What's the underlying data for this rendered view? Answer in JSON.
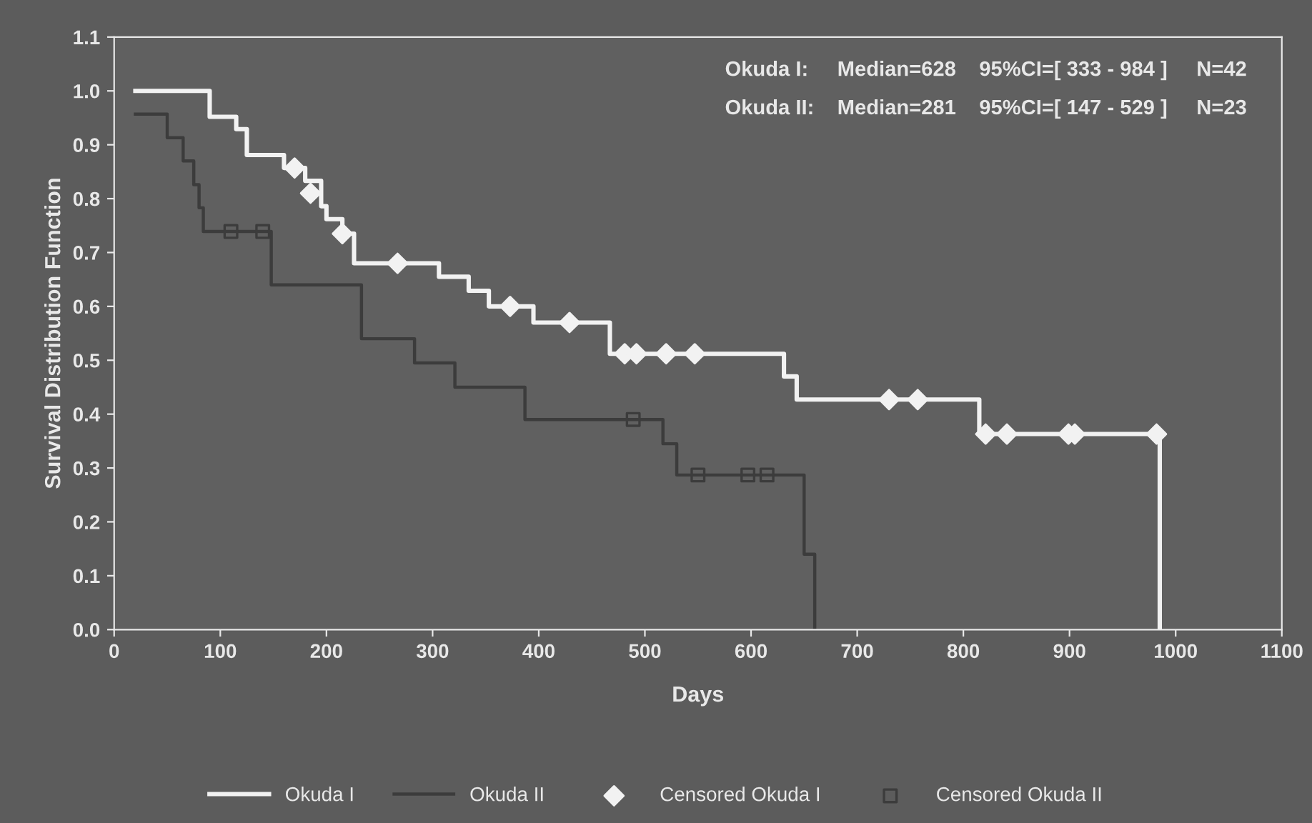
{
  "chart_data": {
    "type": "step",
    "xlabel": "Days",
    "ylabel": "Survival Distribution Function",
    "annotations": [
      "Okuda I:     Median=628    95%CI=[ 333 - 984 ]     N=42",
      "Okuda II:    Median=281    95%CI=[ 147 - 529 ]     N=23"
    ],
    "series": [
      {
        "name": "Okuda I",
        "color": "#f2f2f2",
        "line_style": "solid",
        "marker": "none",
        "x": [
          20,
          90,
          115,
          125,
          160,
          180,
          195,
          200,
          215,
          226,
          306,
          334,
          353,
          395,
          467,
          631,
          643,
          815,
          985
        ],
        "values": [
          1.0,
          0.952,
          0.929,
          0.881,
          0.857,
          0.833,
          0.786,
          0.762,
          0.735,
          0.68,
          0.655,
          0.629,
          0.6,
          0.57,
          0.512,
          0.47,
          0.427,
          0.363,
          0.0
        ]
      },
      {
        "name": "Okuda II",
        "color": "#3c3c3c",
        "line_style": "solid",
        "marker": "none",
        "x": [
          20,
          50,
          65,
          75,
          80,
          84,
          148,
          233,
          283,
          321,
          387,
          517,
          530,
          650,
          660
        ],
        "values": [
          0.957,
          0.913,
          0.87,
          0.826,
          0.783,
          0.739,
          0.64,
          0.54,
          0.495,
          0.45,
          0.39,
          0.345,
          0.287,
          0.14,
          0.0
        ]
      },
      {
        "name": "Censored Okuda I",
        "color": "#f2f2f2",
        "type": "scatter",
        "marker": "diamond",
        "x": [
          170,
          185,
          215,
          267,
          373,
          429,
          481,
          492,
          520,
          547,
          730,
          757,
          821,
          841,
          899,
          905,
          982
        ],
        "values": [
          0.857,
          0.81,
          0.735,
          0.68,
          0.6,
          0.57,
          0.512,
          0.512,
          0.512,
          0.512,
          0.427,
          0.427,
          0.363,
          0.363,
          0.363,
          0.363,
          0.363
        ]
      },
      {
        "name": "Censored Okuda II",
        "color": "#3c3c3c",
        "type": "scatter",
        "marker": "square",
        "x": [
          110,
          140,
          489,
          550,
          597,
          615
        ],
        "values": [
          0.739,
          0.739,
          0.39,
          0.287,
          0.287,
          0.287
        ]
      }
    ],
    "xlim": [
      0,
      1100
    ],
    "xticks": [
      0,
      100,
      200,
      300,
      400,
      500,
      600,
      700,
      800,
      900,
      1000,
      1100
    ],
    "ylim": [
      0,
      1.1
    ],
    "yticks": [
      {
        "value": 0,
        "label": "0.0"
      },
      {
        "value": 0.1,
        "label": "0.1"
      },
      {
        "value": 0.2,
        "label": "0.2"
      },
      {
        "value": 0.3,
        "label": "0.3"
      },
      {
        "value": 0.4,
        "label": "0.4"
      },
      {
        "value": 0.5,
        "label": "0.5"
      },
      {
        "value": 0.6,
        "label": "0.6"
      },
      {
        "value": 0.7,
        "label": "0.7"
      },
      {
        "value": 0.8,
        "label": "0.8"
      },
      {
        "value": 0.9,
        "label": "0.9"
      },
      {
        "value": 1.0,
        "label": "1.0"
      },
      {
        "value": 1.1,
        "label": "1.1"
      }
    ],
    "grid": false,
    "legend": "bottom"
  }
}
